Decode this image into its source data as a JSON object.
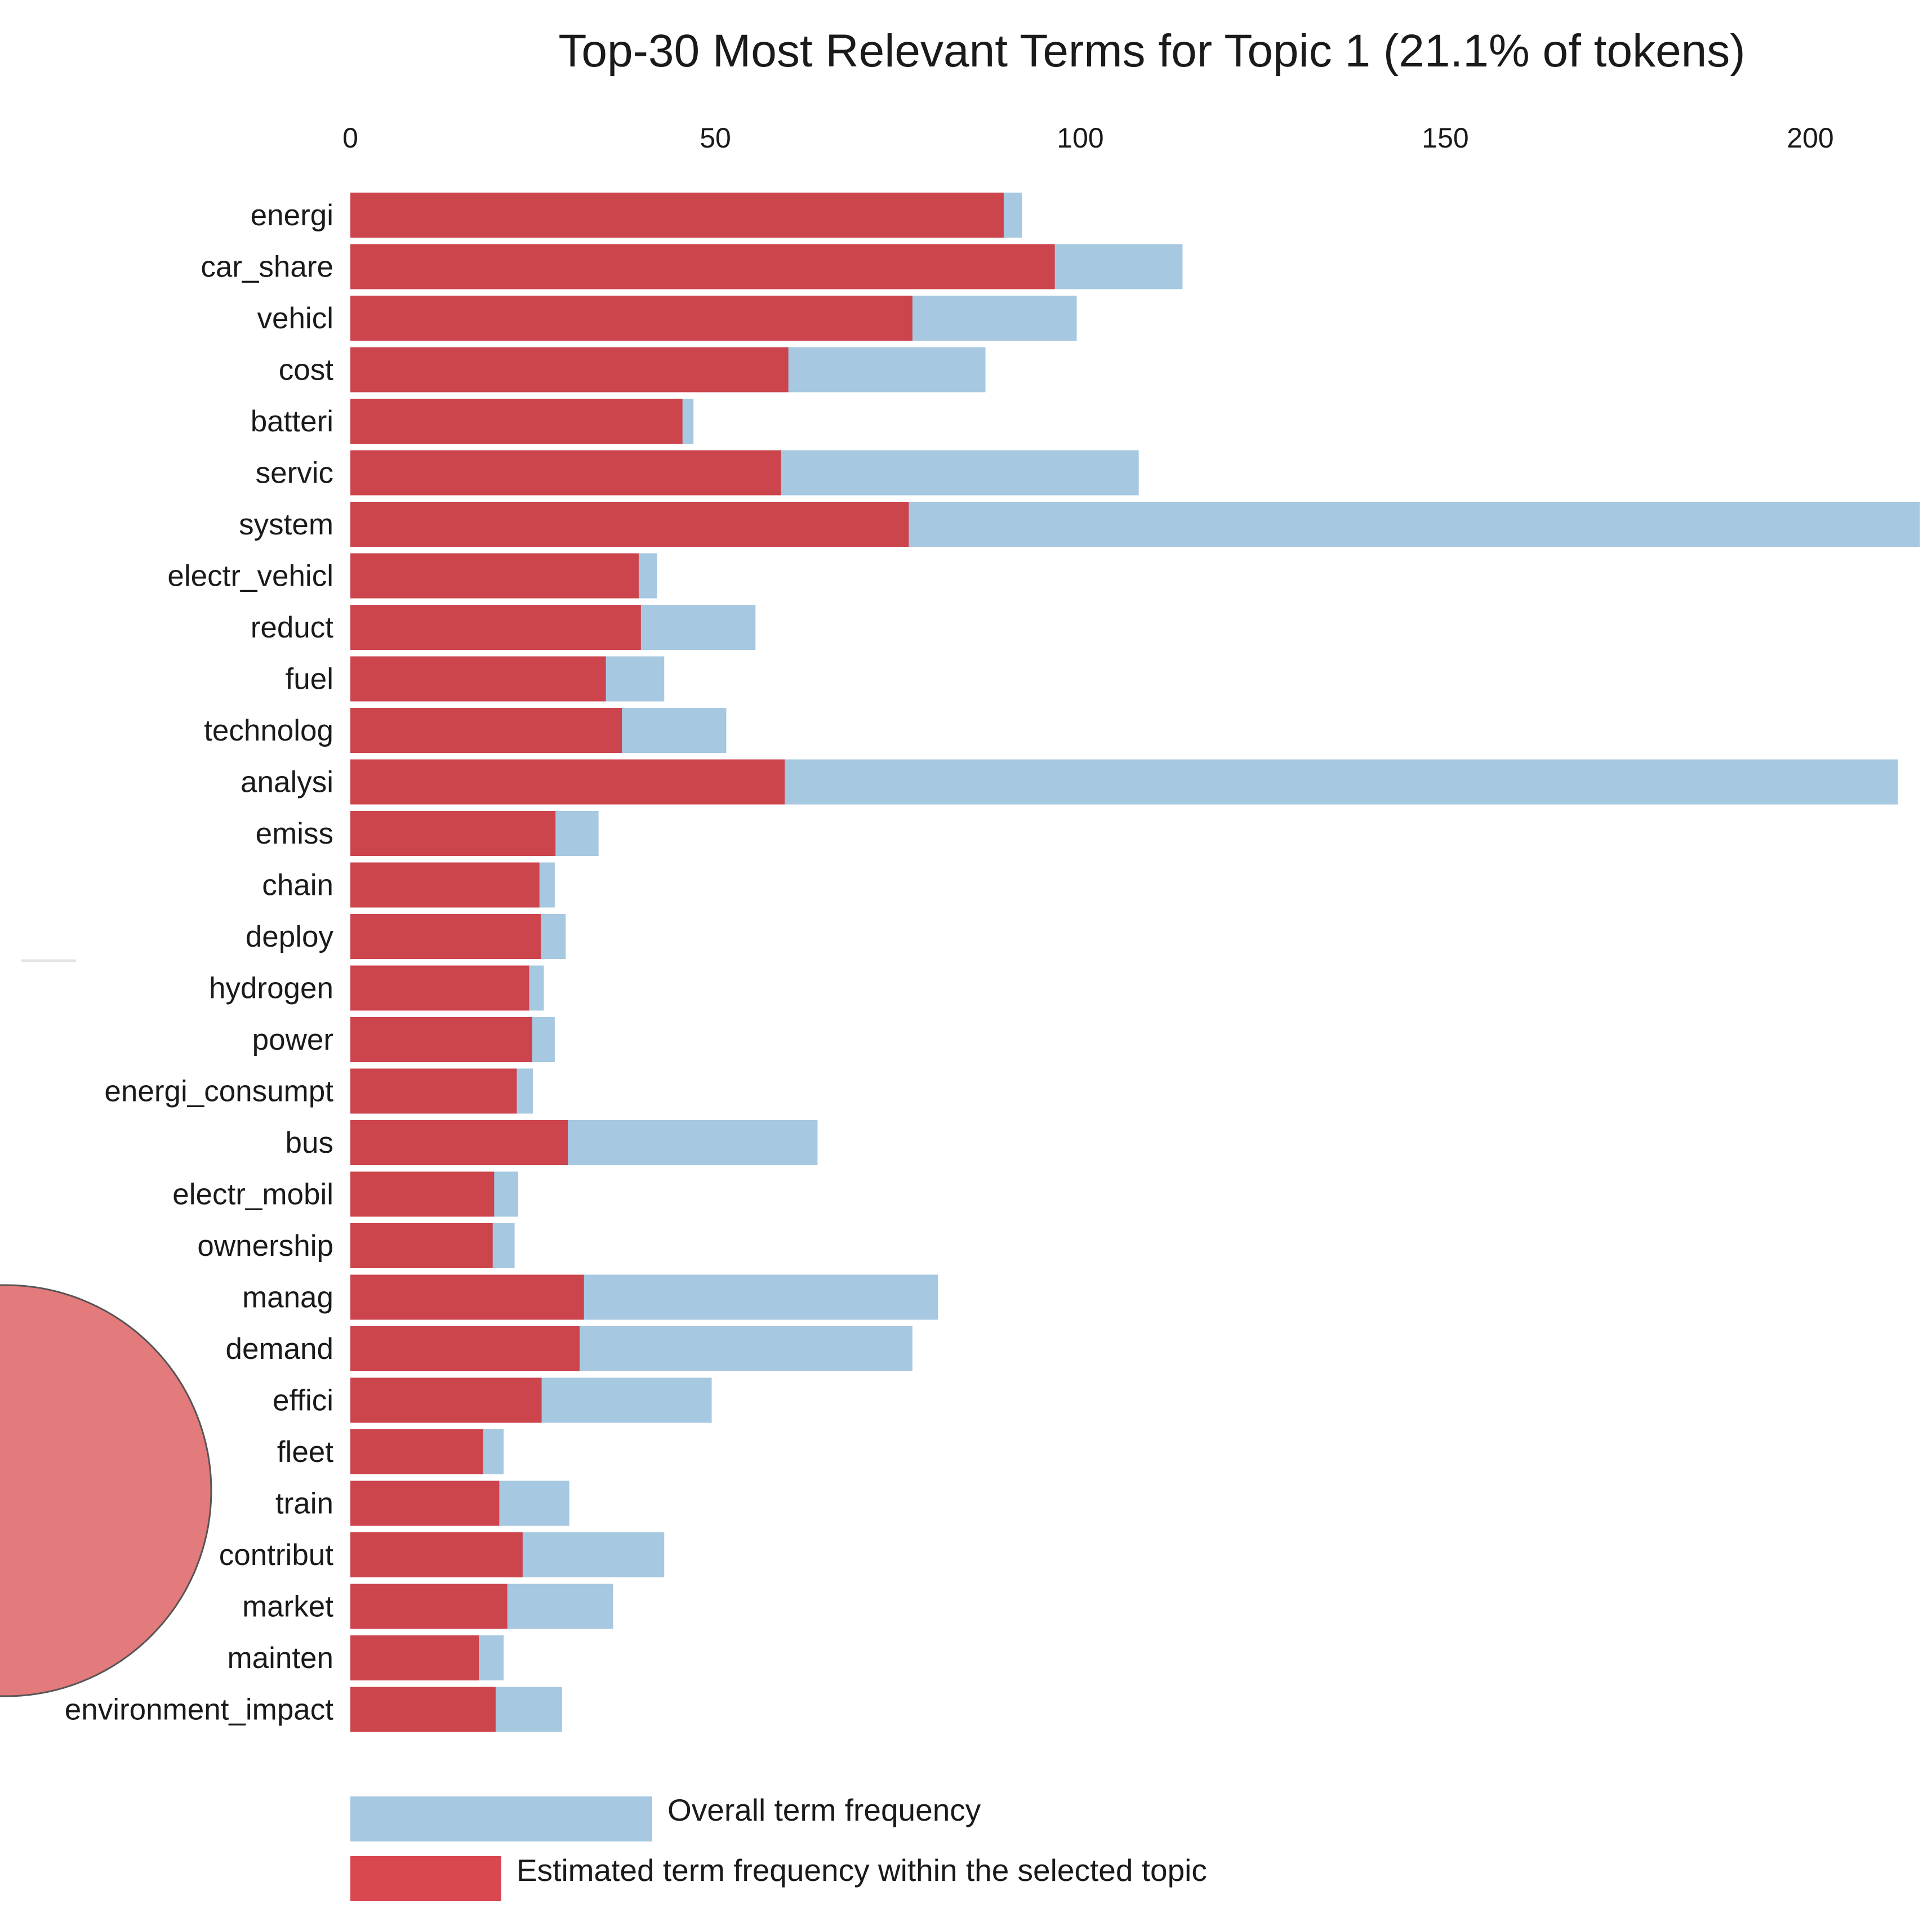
{
  "chart_data": {
    "type": "bar",
    "orientation": "horizontal",
    "title": "Top-30 Most Relevant Terms for Topic 1 (21.1% of tokens)",
    "xlim": [
      0,
      215
    ],
    "xticks": [
      "0",
      "50",
      "100",
      "150",
      "200"
    ],
    "categories": [
      "energi",
      "car_share",
      "vehicl",
      "cost",
      "batteri",
      "servic",
      "system",
      "electr_vehicl",
      "reduct",
      "fuel",
      "technolog",
      "analysi",
      "emiss",
      "chain",
      "deploy",
      "hydrogen",
      "power",
      "energi_consumpt",
      "bus",
      "electr_mobil",
      "ownership",
      "manag",
      "demand",
      "effici",
      "fleet",
      "train",
      "contribut",
      "market",
      "mainten",
      "environment_impact"
    ],
    "series": [
      {
        "name": "Overall term frequency",
        "color": "#a6c8e1",
        "values": [
          92,
          114,
          99.5,
          87,
          47,
          108,
          215,
          42,
          55.5,
          43,
          51.5,
          212,
          34,
          28,
          29.5,
          26.5,
          28,
          25,
          64,
          23,
          22.5,
          80.5,
          77,
          49.5,
          21,
          30,
          43,
          36,
          21,
          29
        ]
      },
      {
        "name": "Estimated term frequency within the selected topic",
        "color": "#cc444c",
        "values": [
          89.5,
          96.5,
          77,
          60,
          45.5,
          59,
          76.5,
          39.5,
          39.8,
          35,
          37.2,
          59.5,
          28.1,
          25.9,
          26.1,
          24.5,
          24.9,
          22.8,
          29.8,
          19.7,
          19.5,
          32,
          31.4,
          26.2,
          18.2,
          20.4,
          23.6,
          21.5,
          17.6,
          19.9
        ]
      }
    ],
    "legend": [
      {
        "label": "Overall term frequency",
        "color": "#a6c8e1"
      },
      {
        "label": "Estimated term frequency within the selected topic",
        "color": "#d94750"
      }
    ]
  },
  "decor": {
    "circle_color": "#e37a7b",
    "circle_stroke": "#555555"
  }
}
